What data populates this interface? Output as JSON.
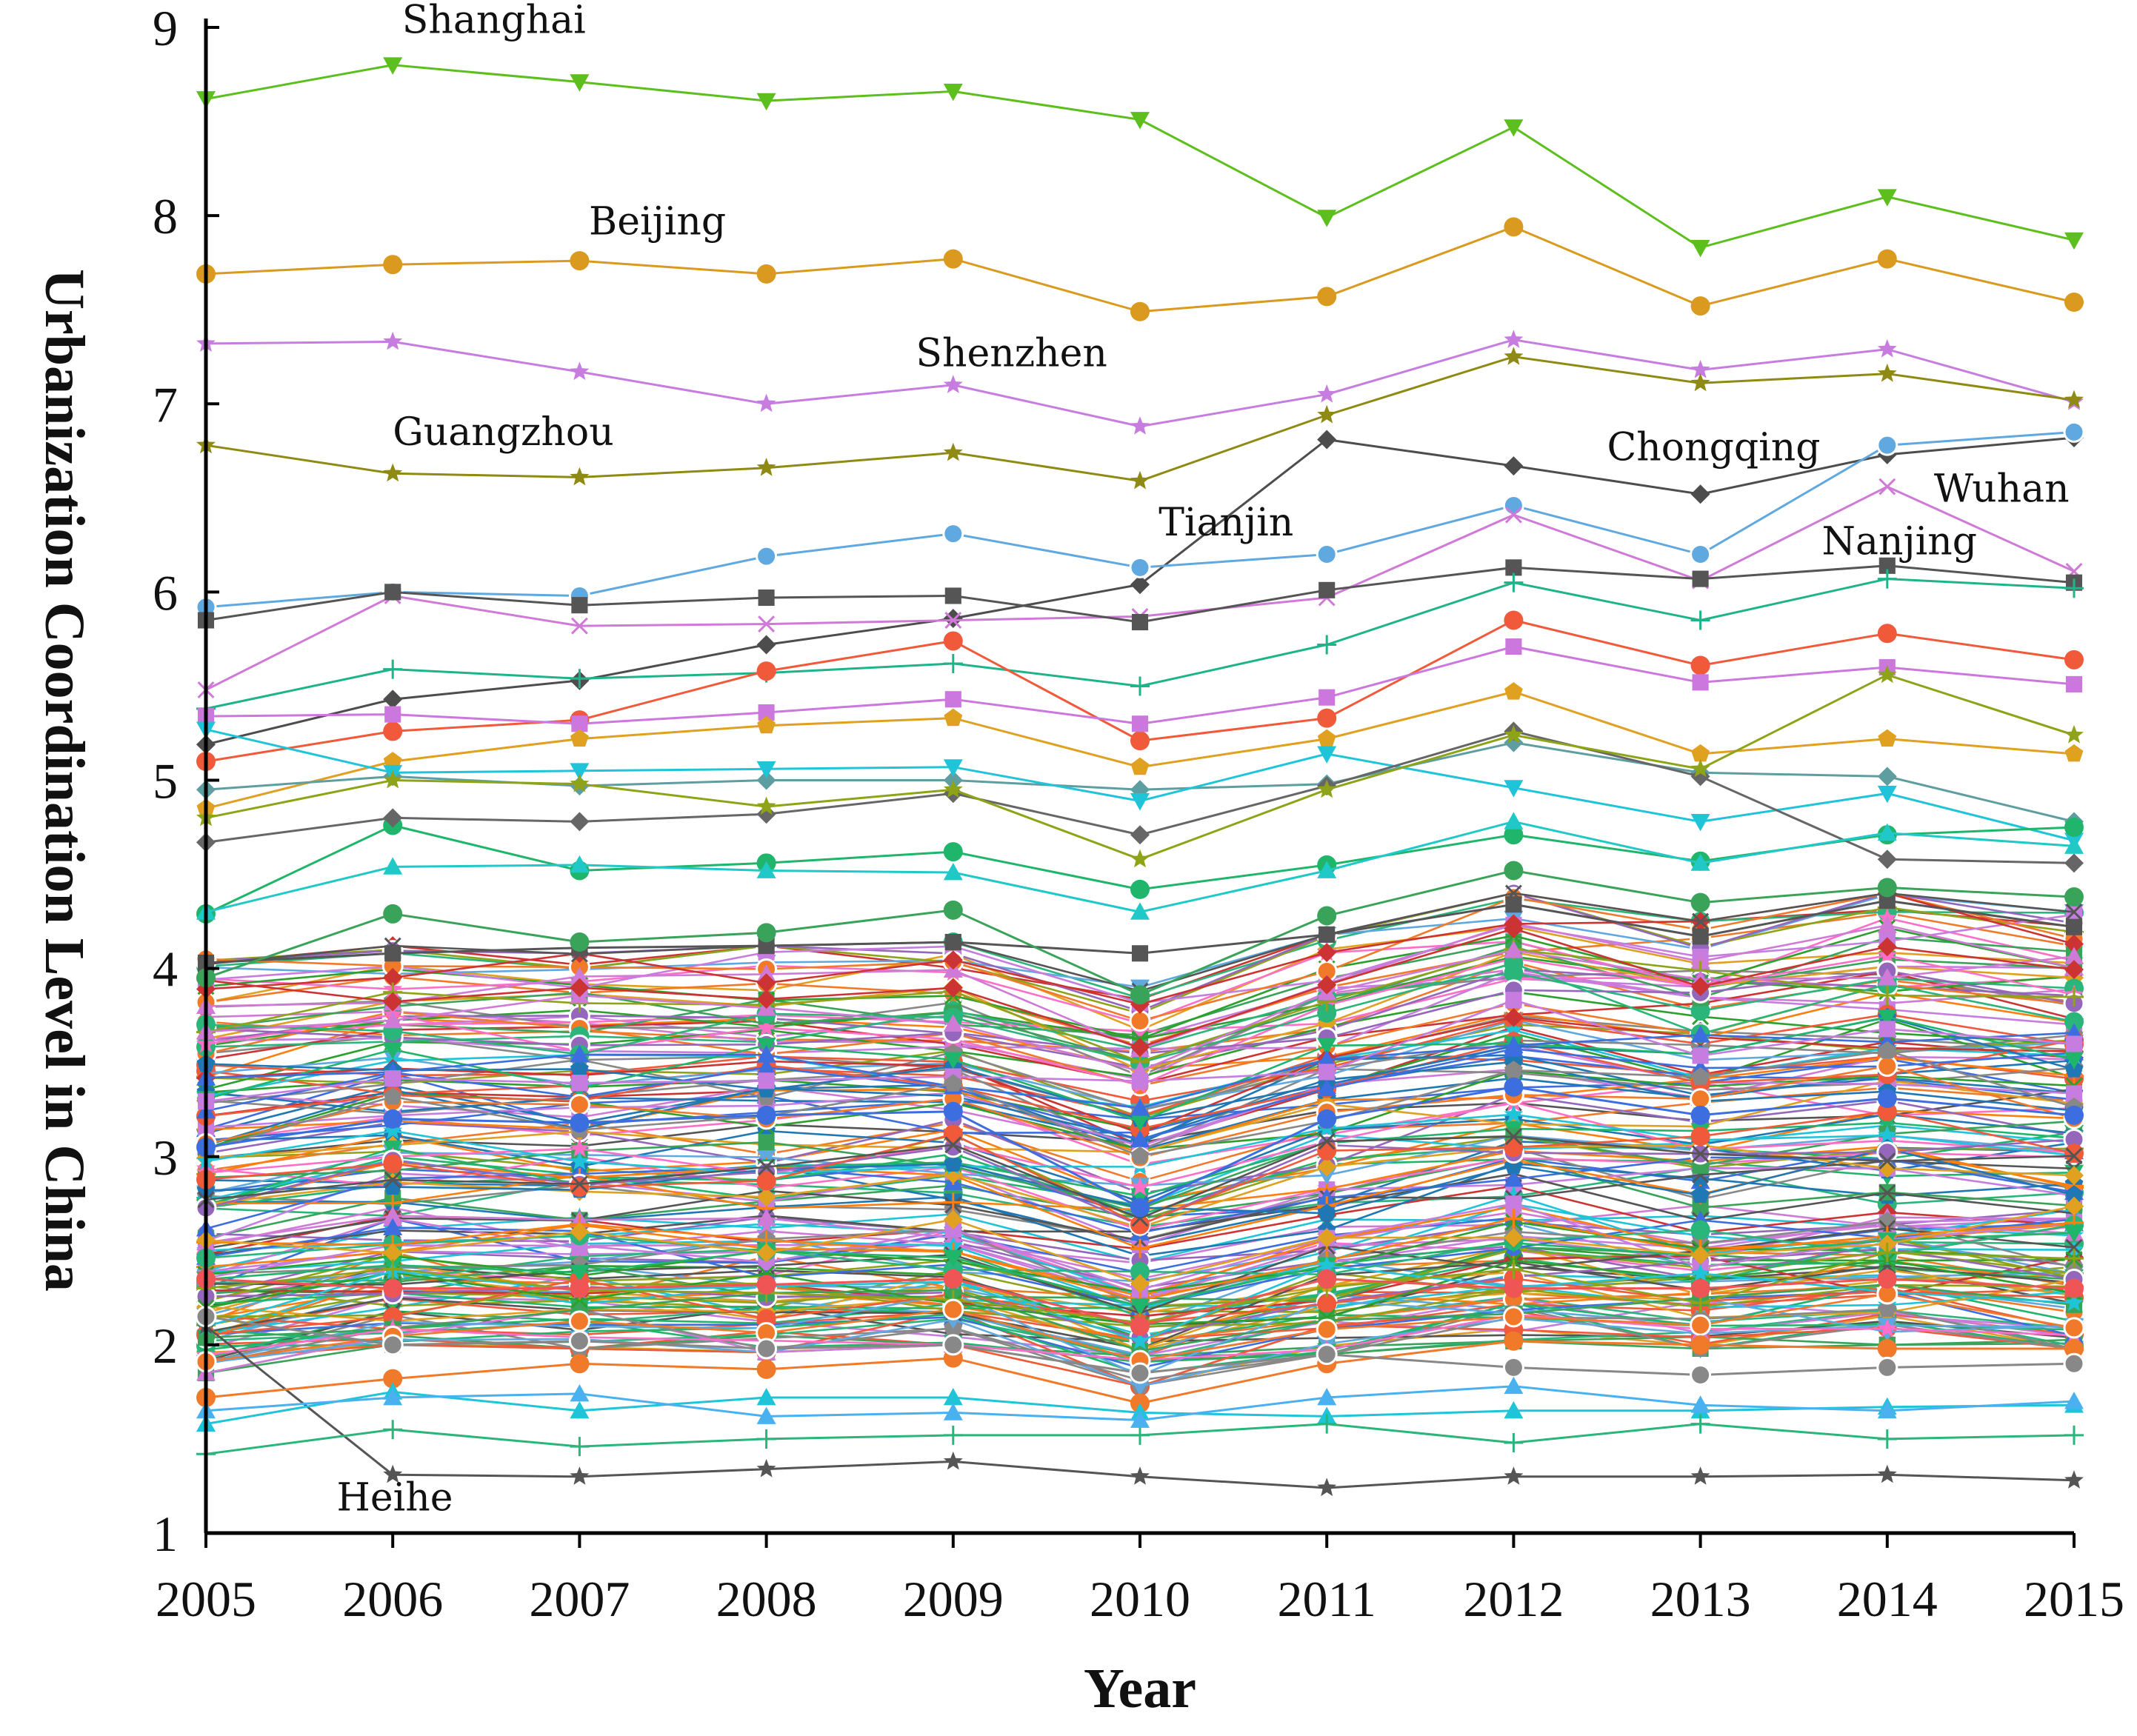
{
  "chart_data": {
    "type": "line",
    "title": "",
    "xlabel": "Year",
    "ylabel": "Urbanization Coordination Level in China",
    "x": [
      2005,
      2006,
      2007,
      2008,
      2009,
      2010,
      2011,
      2012,
      2013,
      2014,
      2015
    ],
    "ylim": [
      1,
      9
    ],
    "yticks": [
      1,
      2,
      3,
      4,
      5,
      6,
      7,
      8,
      9
    ],
    "grid": false,
    "legend": "none",
    "series": [
      {
        "name": "Shanghai",
        "label": "Shanghai",
        "color": "#5dbf1e",
        "marker": "triangle-down",
        "values": [
          8.62,
          8.8,
          8.71,
          8.61,
          8.66,
          8.51,
          7.99,
          8.47,
          7.83,
          8.1,
          7.87
        ]
      },
      {
        "name": "Beijing",
        "label": "Beijing",
        "color": "#d99a1f",
        "marker": "circle",
        "values": [
          7.69,
          7.74,
          7.76,
          7.69,
          7.77,
          7.49,
          7.57,
          7.94,
          7.52,
          7.77,
          7.54
        ]
      },
      {
        "name": "Shenzhen",
        "label": "Shenzhen",
        "color": "#c77de0",
        "marker": "star",
        "values": [
          7.32,
          7.33,
          7.17,
          7.0,
          7.1,
          6.88,
          7.05,
          7.34,
          7.18,
          7.29,
          7.01
        ]
      },
      {
        "name": "Guangzhou",
        "label": "Guangzhou",
        "color": "#8f8a14",
        "marker": "star",
        "values": [
          6.78,
          6.63,
          6.61,
          6.66,
          6.74,
          6.59,
          6.94,
          7.25,
          7.11,
          7.16,
          7.02
        ]
      },
      {
        "name": "Chongqing",
        "label": "Chongqing",
        "color": "#4d4d4d",
        "marker": "diamond",
        "values": [
          5.19,
          5.43,
          5.53,
          5.72,
          5.86,
          6.04,
          6.81,
          6.67,
          6.52,
          6.73,
          6.82
        ]
      },
      {
        "name": "Tianjin",
        "label": "Tianjin",
        "color": "#5fa8e0",
        "marker": "sphere",
        "values": [
          5.92,
          6.0,
          5.98,
          6.19,
          6.31,
          6.13,
          6.2,
          6.46,
          6.2,
          6.78,
          6.85
        ]
      },
      {
        "name": "Wuhan",
        "label": "Wuhan",
        "color": "#d07ad8",
        "marker": "x",
        "values": [
          5.48,
          5.98,
          5.82,
          5.83,
          5.85,
          5.87,
          5.97,
          6.41,
          6.06,
          6.56,
          6.11
        ]
      },
      {
        "name": "Nanjing",
        "label": "Nanjing",
        "color": "#555555",
        "marker": "square",
        "values": [
          5.85,
          6.0,
          5.93,
          5.97,
          5.98,
          5.84,
          6.01,
          6.13,
          6.07,
          6.14,
          6.05
        ]
      },
      {
        "name": "Heihe",
        "label": "Heihe",
        "color": "#555555",
        "marker": "star",
        "values": [
          2.1,
          1.31,
          1.3,
          1.34,
          1.38,
          1.3,
          1.24,
          1.3,
          1.3,
          1.31,
          1.28
        ]
      },
      {
        "name": "",
        "color": "#1fb38a",
        "marker": "plus",
        "values": [
          5.38,
          5.59,
          5.54,
          5.57,
          5.62,
          5.5,
          5.72,
          6.05,
          5.85,
          6.07,
          6.02
        ]
      },
      {
        "name": "",
        "color": "#f05a3a",
        "marker": "circle",
        "values": [
          5.1,
          5.26,
          5.32,
          5.58,
          5.74,
          5.21,
          5.33,
          5.85,
          5.61,
          5.78,
          5.64
        ]
      },
      {
        "name": "",
        "color": "#cc77dd",
        "marker": "square",
        "values": [
          5.34,
          5.35,
          5.3,
          5.36,
          5.43,
          5.3,
          5.44,
          5.71,
          5.52,
          5.6,
          5.51
        ]
      },
      {
        "name": "",
        "color": "#e0a020",
        "marker": "pentagon",
        "values": [
          4.85,
          5.1,
          5.22,
          5.29,
          5.33,
          5.07,
          5.22,
          5.47,
          5.14,
          5.22,
          5.14
        ]
      },
      {
        "name": "",
        "color": "#5f9ea0",
        "marker": "diamond",
        "values": [
          4.95,
          5.02,
          4.97,
          5.0,
          5.0,
          4.95,
          4.98,
          5.2,
          5.04,
          5.02,
          4.78
        ]
      },
      {
        "name": "",
        "color": "#20c4d8",
        "marker": "triangle-down",
        "values": [
          5.27,
          5.04,
          5.05,
          5.06,
          5.07,
          4.89,
          5.14,
          4.96,
          4.78,
          4.93,
          4.68
        ]
      },
      {
        "name": "",
        "color": "#1fb56a",
        "marker": "circle",
        "values": [
          4.29,
          4.76,
          4.52,
          4.56,
          4.62,
          4.42,
          4.55,
          4.71,
          4.57,
          4.71,
          4.75
        ]
      },
      {
        "name": "",
        "color": "#666666",
        "marker": "diamond",
        "values": [
          4.67,
          4.8,
          4.78,
          4.82,
          4.93,
          4.71,
          4.97,
          5.26,
          5.02,
          4.58,
          4.56
        ]
      },
      {
        "name": "",
        "color": "#555555",
        "marker": "square",
        "values": [
          4.03,
          4.08,
          4.11,
          4.12,
          4.14,
          4.08,
          4.18,
          4.34,
          4.17,
          4.36,
          4.22
        ]
      },
      {
        "name": "",
        "color": "#3aa35a",
        "marker": "circle",
        "values": [
          3.95,
          4.29,
          4.14,
          4.19,
          4.31,
          3.86,
          4.28,
          4.52,
          4.35,
          4.43,
          4.38
        ]
      },
      {
        "name": "",
        "color": "#20c8c8",
        "marker": "triangle",
        "values": [
          4.3,
          4.54,
          4.55,
          4.52,
          4.51,
          4.3,
          4.52,
          4.78,
          4.56,
          4.72,
          4.65
        ]
      },
      {
        "name": "",
        "color": "#8fa319",
        "marker": "star",
        "values": [
          4.8,
          5.0,
          4.98,
          4.86,
          4.95,
          4.58,
          4.95,
          5.24,
          5.06,
          5.56,
          5.24
        ]
      },
      {
        "name": "",
        "color": "#3c6ee0",
        "marker": "circle",
        "values": [
          3.05,
          3.2,
          3.18,
          3.22,
          3.24,
          2.73,
          3.2,
          3.37,
          3.22,
          3.31,
          3.22
        ]
      },
      {
        "name": "",
        "color": "#f05555",
        "marker": "circle",
        "values": [
          2.35,
          2.3,
          2.3,
          2.32,
          2.35,
          2.1,
          2.35,
          2.3,
          2.3,
          2.35,
          2.3
        ]
      },
      {
        "name": "",
        "color": "#f07a2a",
        "marker": "circle",
        "values": [
          1.72,
          1.82,
          1.9,
          1.87,
          1.93,
          1.69,
          1.9,
          2.02,
          2.0,
          1.98,
          1.98
        ]
      },
      {
        "name": "",
        "color": "#20c4d8",
        "marker": "triangle",
        "values": [
          1.58,
          1.75,
          1.65,
          1.72,
          1.72,
          1.64,
          1.62,
          1.65,
          1.65,
          1.67,
          1.68
        ]
      },
      {
        "name": "",
        "color": "#2ab57a",
        "marker": "plus",
        "values": [
          1.42,
          1.55,
          1.46,
          1.5,
          1.52,
          1.52,
          1.58,
          1.48,
          1.58,
          1.5,
          1.52
        ]
      },
      {
        "name": "",
        "color": "#888888",
        "marker": "sphere",
        "values": [
          2.15,
          2.0,
          2.02,
          1.98,
          2.0,
          1.85,
          1.95,
          1.88,
          1.84,
          1.88,
          1.9
        ]
      },
      {
        "name": "",
        "color": "#4ab1f0",
        "marker": "triangle",
        "values": [
          1.65,
          1.72,
          1.74,
          1.62,
          1.64,
          1.6,
          1.72,
          1.78,
          1.68,
          1.65,
          1.7
        ]
      }
    ],
    "background_band": {
      "low": [
        1.85,
        2.0,
        1.98,
        1.96,
        2.0,
        1.78,
        1.95,
        2.02,
        1.98,
        2.0,
        1.98
      ],
      "high": [
        4.05,
        4.12,
        4.08,
        4.12,
        4.14,
        3.9,
        4.18,
        4.4,
        4.25,
        4.4,
        4.3
      ],
      "count": 170,
      "colors": [
        "#f05a3a",
        "#3c6ee0",
        "#1fb56a",
        "#e0a020",
        "#c77de0",
        "#20c4d8",
        "#888888",
        "#8fa319",
        "#555555",
        "#f07a2a",
        "#2ab57a",
        "#d07ad8",
        "#5fa8e0",
        "#cc3333",
        "#3aa35a",
        "#ff6ec7",
        "#1f77b4",
        "#ff7f0e",
        "#2ca02c",
        "#9467bd"
      ],
      "markers": [
        "circle",
        "triangle",
        "triangle-down",
        "diamond",
        "square",
        "star",
        "pentagon",
        "plus",
        "x",
        "sphere"
      ]
    },
    "annotations": [
      {
        "text": "Shanghai",
        "x": 2006.05,
        "y": 8.97
      },
      {
        "text": "Beijing",
        "x": 2007.05,
        "y": 7.9
      },
      {
        "text": "Shenzhen",
        "x": 2008.8,
        "y": 7.2
      },
      {
        "text": "Guangzhou",
        "x": 2006.0,
        "y": 6.78
      },
      {
        "text": "Chongqing",
        "x": 2012.5,
        "y": 6.7
      },
      {
        "text": "Tianjin",
        "x": 2010.1,
        "y": 6.3
      },
      {
        "text": "Wuhan",
        "x": 2014.25,
        "y": 6.48
      },
      {
        "text": "Nanjing",
        "x": 2013.65,
        "y": 6.2
      },
      {
        "text": "Heihe",
        "x": 2005.7,
        "y": 1.12
      }
    ]
  }
}
